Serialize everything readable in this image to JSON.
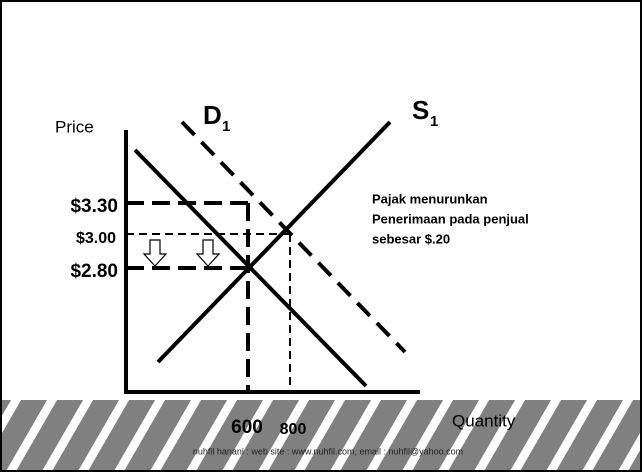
{
  "axes": {
    "y_label": "Price",
    "x_label": "Quantity"
  },
  "curves": [
    {
      "label": "D",
      "subscript": "1"
    },
    {
      "label": "S",
      "subscript": "1"
    }
  ],
  "price_labels": [
    "$3.30",
    "$3.00",
    "$2.80"
  ],
  "quantity_labels": [
    "600",
    "800"
  ],
  "annotation": [
    "Pajak menurunkan",
    "Penerimaan pada penjual",
    "sebesar $.20"
  ],
  "footer": "nuhfil hanani : web site : www.nuhfil.com, email : nuhfil@yahoo.com"
}
